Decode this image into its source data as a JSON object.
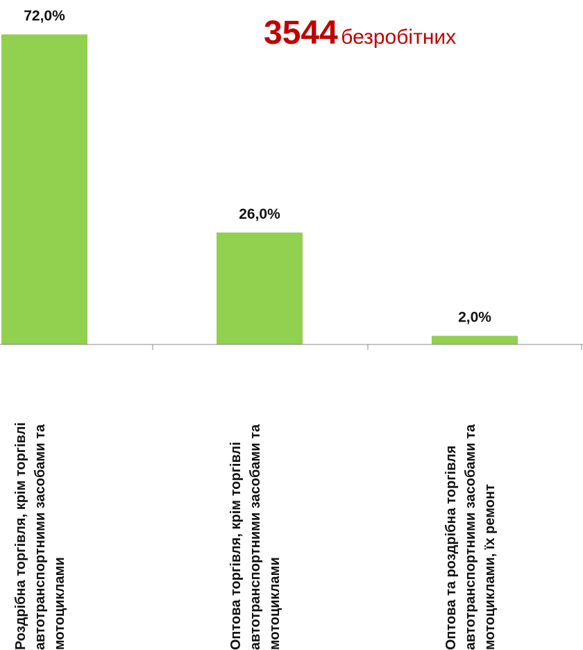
{
  "headline": {
    "count": "3544",
    "label": "безробітних",
    "color": "#c00000"
  },
  "chart_data": {
    "type": "bar",
    "categories": [
      [
        "Роздрібна торгівля, крім торгівлі",
        "автотранспортними засобами та",
        "мотоциклами"
      ],
      [
        "Оптова торгівля, крім торгівлі",
        "автотранспортними засобами та",
        "мотоциклами"
      ],
      [
        "Оптова та роздрібна торгівля",
        "автотранспортними засобами та",
        "мотоциклами, їх ремонт"
      ]
    ],
    "values": [
      72.0,
      26.0,
      2.0
    ],
    "data_labels": [
      "72,0%",
      "26,0%",
      "2,0%"
    ],
    "ylim": [
      0,
      80
    ],
    "bar_color": "#92d050",
    "axis_color": "#888888",
    "grid": false,
    "legend": "none"
  }
}
